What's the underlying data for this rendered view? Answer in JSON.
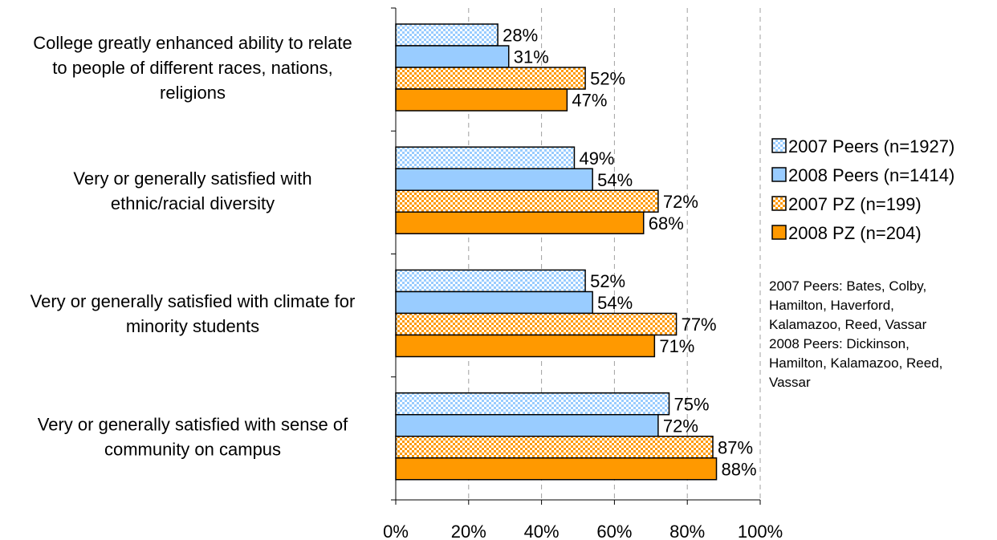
{
  "chart_data": {
    "type": "bar",
    "orientation": "horizontal",
    "categories": [
      [
        "College greatly enhanced ability to relate",
        "to people of different races, nations,",
        "religions"
      ],
      [
        "Very or generally satisfied with",
        "ethnic/racial diversity"
      ],
      [
        "Very or generally satisfied with climate for",
        "minority students"
      ],
      [
        "Very or generally satisfied with sense of",
        "community on campus"
      ]
    ],
    "series": [
      {
        "name": "2007 Peers (n=1927)",
        "values": [
          28,
          49,
          52,
          75
        ],
        "color": "#99ccff",
        "pattern": "checker"
      },
      {
        "name": "2008 Peers (n=1414)",
        "values": [
          31,
          54,
          54,
          72
        ],
        "color": "#99ccff",
        "pattern": "solid"
      },
      {
        "name": "2007 PZ (n=199)",
        "values": [
          52,
          72,
          77,
          87
        ],
        "color": "#ff9900",
        "pattern": "checker"
      },
      {
        "name": "2008 PZ (n=204)",
        "values": [
          47,
          68,
          71,
          88
        ],
        "color": "#ff9900",
        "pattern": "solid"
      }
    ],
    "xlim": [
      0,
      100
    ],
    "xticks": [
      "0%",
      "20%",
      "40%",
      "60%",
      "80%",
      "100%"
    ],
    "value_suffix": "%",
    "grid": "vertical dashed",
    "legend_position": "right"
  },
  "notes": [
    "2007 Peers: Bates, Colby,\nHamilton, Haverford,\nKalamazoo, Reed, Vassar",
    "2008 Peers: Dickinson,\nHamilton, Kalamazoo, Reed,\nVassar"
  ]
}
